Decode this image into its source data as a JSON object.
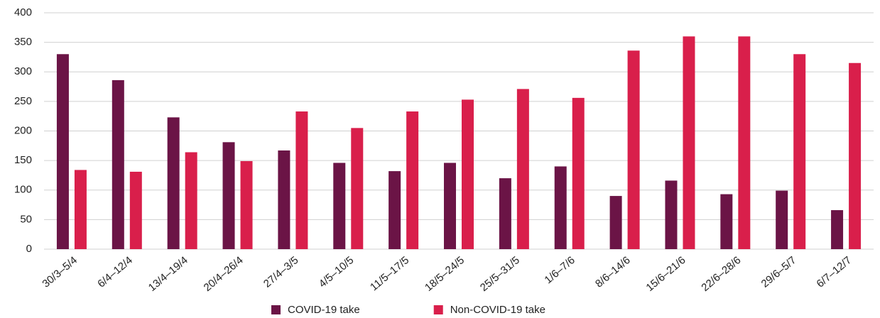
{
  "chart_data": {
    "type": "bar",
    "categories": [
      "30/3–5/4",
      "6/4–12/4",
      "13/4–19/4",
      "20/4–26/4",
      "27/4–3/5",
      "4/5–10/5",
      "11/5–17/5",
      "18/5–24/5",
      "25/5–31/5",
      "1/6–7/6",
      "8/6–14/6",
      "15/6–21/6",
      "22/6–28/6",
      "29/6–5/7",
      "6/7–12/7"
    ],
    "series": [
      {
        "name": "COVID-19 take",
        "color": "#6b1446",
        "values": [
          330,
          286,
          223,
          181,
          167,
          146,
          132,
          146,
          120,
          140,
          90,
          116,
          93,
          99,
          66
        ]
      },
      {
        "name": "Non-COVID-19 take",
        "color": "#d91f4b",
        "values": [
          134,
          131,
          164,
          149,
          233,
          205,
          233,
          253,
          271,
          256,
          336,
          360,
          360,
          330,
          315
        ]
      }
    ],
    "ylim": [
      0,
      400
    ],
    "yticks": [
      0,
      50,
      100,
      150,
      200,
      250,
      300,
      350,
      400
    ],
    "grid": true,
    "legend": "bottom"
  }
}
